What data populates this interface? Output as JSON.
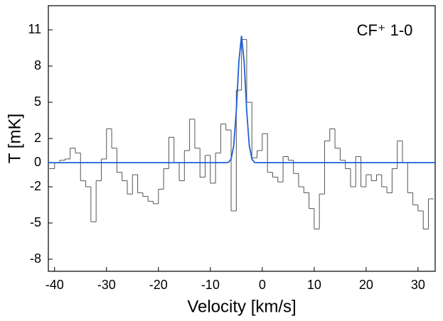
{
  "chart_data": {
    "type": "step",
    "annotation": "CF⁺ 1-0",
    "xlabel": "Velocity [km/s]",
    "ylabel": "T [mK]",
    "xlim": [
      -41.2,
      33.3
    ],
    "ylim": [
      -9,
      13
    ],
    "xticks": [
      -40,
      -30,
      -20,
      -10,
      0,
      10,
      20,
      30
    ],
    "yticks": [
      -8,
      -5,
      -2,
      0,
      2,
      5,
      8,
      11
    ],
    "x": [
      -40.5,
      -39.5,
      -38.5,
      -37.5,
      -36.5,
      -35.5,
      -34.5,
      -33.5,
      -32.5,
      -31.5,
      -30.5,
      -29.5,
      -28.5,
      -27.5,
      -26.5,
      -25.5,
      -24.5,
      -23.5,
      -22.5,
      -21.5,
      -20.5,
      -19.5,
      -18.5,
      -17.5,
      -16.5,
      -15.5,
      -14.5,
      -13.5,
      -12.5,
      -11.5,
      -10.5,
      -9.5,
      -8.5,
      -7.5,
      -6.5,
      -5.5,
      -4.5,
      -3.5,
      -2.5,
      -1.5,
      -0.5,
      0.5,
      1.5,
      2.5,
      3.5,
      4.5,
      5.5,
      6.5,
      7.5,
      8.5,
      9.5,
      10.5,
      11.5,
      12.5,
      13.5,
      14.5,
      15.5,
      16.5,
      17.5,
      18.5,
      19.5,
      20.5,
      21.5,
      22.5,
      23.5,
      24.5,
      25.5,
      26.5,
      27.5,
      28.5,
      29.5,
      30.5,
      31.5,
      32.5
    ],
    "series": [
      {
        "color": "#555555",
        "values": [
          -0.5,
          0,
          0.2,
          0.3,
          1.2,
          0.8,
          -1.5,
          -2,
          -4.9,
          -1.5,
          0.3,
          2.8,
          1.2,
          -0.8,
          -1.5,
          -2.6,
          -1,
          -2.5,
          -2.8,
          -3.2,
          -3.4,
          -2.2,
          -0.5,
          2.1,
          0,
          -1.5,
          1,
          3.6,
          1.2,
          -1.2,
          0.6,
          -1.7,
          0.8,
          3.2,
          2.7,
          -4,
          6,
          10.2,
          5,
          0.4,
          1,
          2.4,
          -0.8,
          -1.2,
          -1.6,
          0.5,
          0.2,
          -0.9,
          -2,
          -2.5,
          -3.8,
          -5.5,
          -2.6,
          1.8,
          2.8,
          1.2,
          0.2,
          -0.5,
          -2,
          0.5,
          -2,
          -1,
          -1.5,
          -1,
          -2,
          -2.5,
          -0.5,
          1.8,
          0,
          -2.5,
          -3.5,
          -4,
          -5.5,
          -3
        ]
      },
      {
        "type": "line",
        "color": "#1f5fd6",
        "x": [
          -41.2,
          -7,
          -6.5,
          -6,
          -5.5,
          -5,
          -4.5,
          -4,
          -3.5,
          -3,
          -2.5,
          -2,
          -1.5,
          -1,
          33.3
        ],
        "values": [
          0,
          0,
          0.02,
          0.3,
          1.4,
          4.3,
          8.4,
          10.5,
          8.4,
          4.3,
          1.4,
          0.3,
          0.02,
          0,
          0
        ]
      }
    ]
  }
}
